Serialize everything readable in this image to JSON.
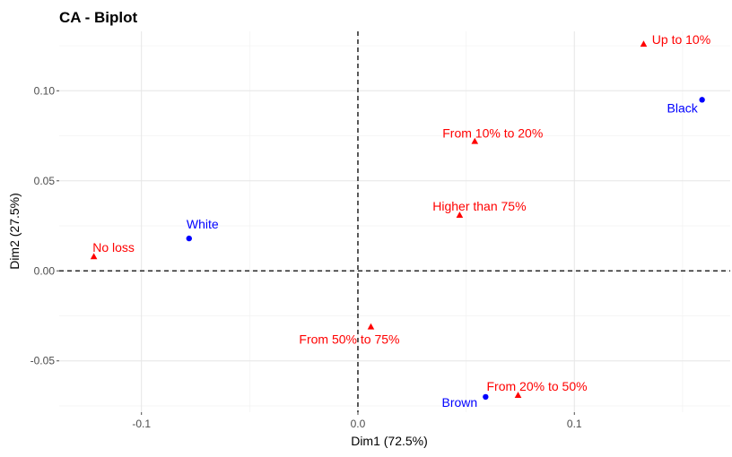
{
  "chart_data": {
    "type": "scatter",
    "title": "CA - Biplot",
    "xlabel": "Dim1 (72.5%)",
    "ylabel": "Dim2 (27.5%)",
    "xlim": [
      -0.138,
      0.172
    ],
    "ylim": [
      -0.0785,
      0.133
    ],
    "x_ticks": [
      -0.1,
      0.0,
      0.1
    ],
    "x_tick_labels": [
      "-0.1",
      "0.0",
      "0.1"
    ],
    "y_ticks": [
      -0.05,
      0.0,
      0.05,
      0.1
    ],
    "y_tick_labels": [
      "-0.05",
      "0.00",
      "0.05",
      "0.10"
    ],
    "grid": true,
    "reference_lines": {
      "x": 0,
      "y": 0,
      "style": "dashed"
    },
    "series": [
      {
        "color": "#0000ff",
        "marker": "circle",
        "points": [
          {
            "label": "White",
            "x": -0.078,
            "y": 0.018
          },
          {
            "label": "Black",
            "x": 0.159,
            "y": 0.095
          },
          {
            "label": "Brown",
            "x": 0.059,
            "y": -0.07
          }
        ]
      },
      {
        "color": "#ff0000",
        "marker": "triangle",
        "points": [
          {
            "label": "Up to 10%",
            "x": 0.132,
            "y": 0.126
          },
          {
            "label": "From 10% to 20%",
            "x": 0.054,
            "y": 0.072
          },
          {
            "label": "Higher than 75%",
            "x": 0.047,
            "y": 0.031
          },
          {
            "label": "No loss",
            "x": -0.122,
            "y": 0.008
          },
          {
            "label": "From 50% to 75%",
            "x": 0.006,
            "y": -0.031
          },
          {
            "label": "From 20% to 50%",
            "x": 0.074,
            "y": -0.069
          }
        ]
      }
    ]
  }
}
